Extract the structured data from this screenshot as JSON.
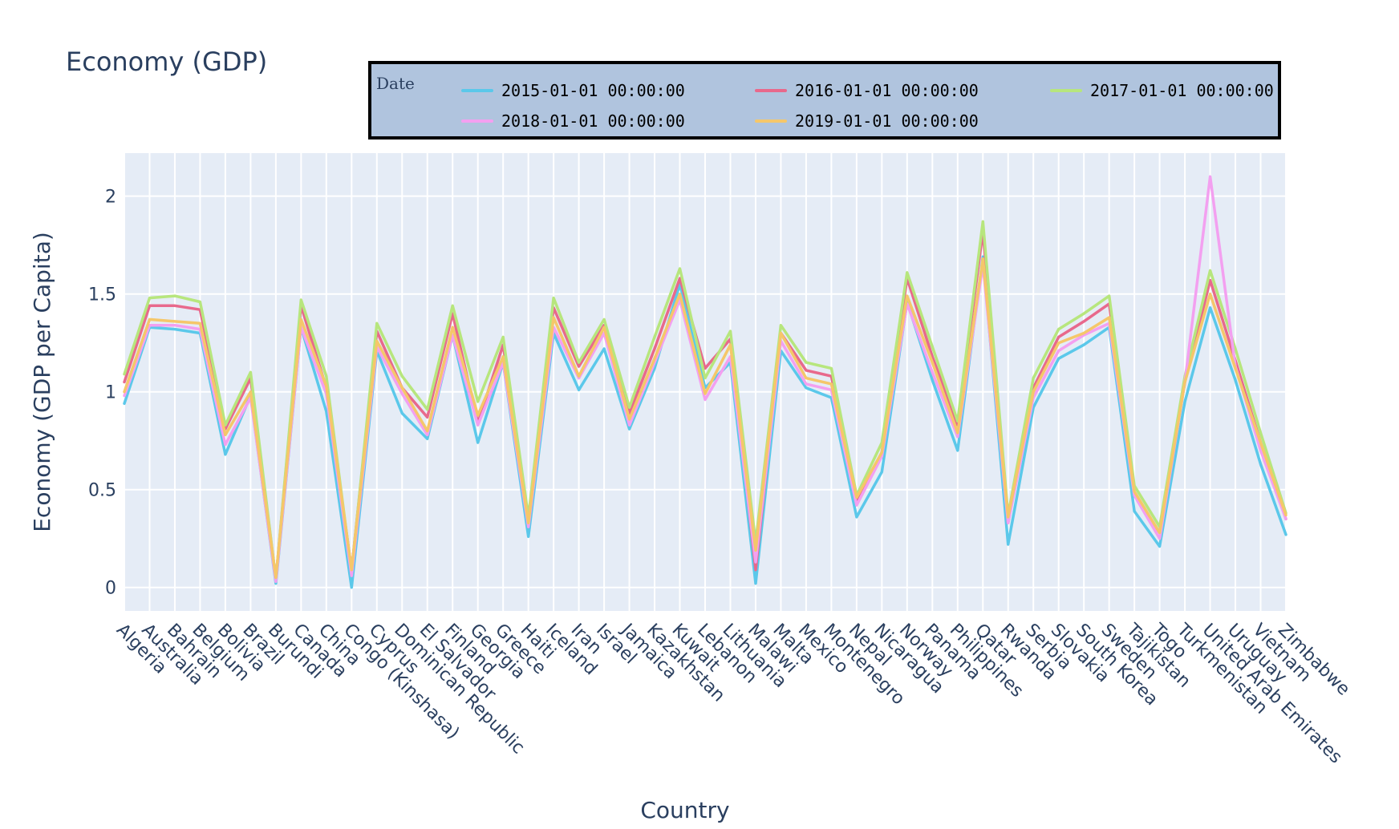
{
  "chart_data": {
    "type": "line",
    "title": "Economy (GDP)",
    "xlabel": "Country",
    "ylabel": "Economy (GDP per Capita)",
    "legend_title": "Date",
    "legend_placement": "top",
    "grid": true,
    "ylim": [
      -0.12,
      2.22
    ],
    "yticks": [
      0,
      0.5,
      1,
      1.5,
      2
    ],
    "ytick_labels": [
      "0",
      "0.5",
      "1",
      "1.5",
      "2"
    ],
    "plot_background": "#e5ecf6",
    "legend_background": "#b0c4de",
    "categories": [
      "Algeria",
      "Australia",
      "Bahrain",
      "Belgium",
      "Bolivia",
      "Brazil",
      "Burundi",
      "Canada",
      "China",
      "Congo (Kinshasa)",
      "Cyprus",
      "Dominican Republic",
      "El Salvador",
      "Finland",
      "Georgia",
      "Greece",
      "Haiti",
      "Iceland",
      "Iran",
      "Israel",
      "Jamaica",
      "Kazakhstan",
      "Kuwait",
      "Lebanon",
      "Lithuania",
      "Malawi",
      "Malta",
      "Mexico",
      "Montenegro",
      "Nepal",
      "Nicaragua",
      "Norway",
      "Panama",
      "Philippines",
      "Qatar",
      "Rwanda",
      "Serbia",
      "Slovakia",
      "South Korea",
      "Sweden",
      "Tajikistan",
      "Togo",
      "Turkmenistan",
      "United Arab Emirates",
      "Uruguay",
      "Vietnam",
      "Zimbabwe"
    ],
    "series": [
      {
        "name": "2015-01-01 00:00:00",
        "color": "#5bc8ea",
        "values": [
          0.94,
          1.33,
          1.32,
          1.3,
          0.68,
          0.98,
          0.02,
          1.33,
          0.9,
          0.0,
          1.21,
          0.89,
          0.76,
          1.29,
          0.74,
          1.15,
          0.26,
          1.3,
          1.01,
          1.22,
          0.81,
          1.12,
          1.55,
          1.02,
          1.15,
          0.02,
          1.21,
          1.02,
          0.97,
          0.36,
          0.59,
          1.46,
          1.06,
          0.7,
          1.69,
          0.22,
          0.92,
          1.17,
          1.24,
          1.33,
          0.39,
          0.21,
          0.95,
          1.43,
          1.06,
          0.63,
          0.27
        ]
      },
      {
        "name": "2016-01-01 00:00:00",
        "color": "#e8698c",
        "values": [
          1.05,
          1.44,
          1.44,
          1.42,
          0.81,
          1.07,
          0.04,
          1.44,
          1.02,
          0.09,
          1.31,
          1.02,
          0.87,
          1.4,
          0.84,
          1.24,
          0.34,
          1.43,
          1.13,
          1.34,
          0.89,
          1.22,
          1.58,
          1.12,
          1.27,
          0.09,
          1.3,
          1.11,
          1.08,
          0.44,
          0.69,
          1.58,
          1.18,
          0.83,
          1.82,
          0.33,
          1.02,
          1.28,
          1.36,
          1.45,
          0.48,
          0.28,
          1.05,
          1.57,
          1.16,
          0.74,
          0.35
        ]
      },
      {
        "name": "2017-01-01 00:00:00",
        "color": "#b7e67d",
        "values": [
          1.09,
          1.48,
          1.49,
          1.46,
          0.83,
          1.1,
          0.04,
          1.47,
          1.08,
          0.08,
          1.35,
          1.08,
          0.91,
          1.44,
          0.95,
          1.28,
          0.36,
          1.48,
          1.15,
          1.37,
          0.92,
          1.28,
          1.63,
          1.07,
          1.31,
          0.23,
          1.34,
          1.15,
          1.12,
          0.47,
          0.74,
          1.61,
          1.23,
          0.85,
          1.87,
          0.37,
          1.07,
          1.32,
          1.4,
          1.49,
          0.52,
          0.31,
          1.08,
          1.62,
          1.22,
          0.79,
          0.38
        ]
      },
      {
        "name": "2018-01-01 00:00:00",
        "color": "#f3a0f0",
        "values": [
          0.98,
          1.34,
          1.34,
          1.32,
          0.73,
          0.97,
          0.03,
          1.33,
          0.99,
          0.06,
          1.23,
          0.99,
          0.78,
          1.29,
          0.83,
          1.15,
          0.31,
          1.33,
          1.07,
          1.3,
          0.83,
          1.15,
          1.47,
          0.96,
          1.18,
          0.13,
          1.26,
          1.04,
          1.01,
          0.42,
          0.67,
          1.45,
          1.1,
          0.77,
          1.65,
          0.33,
          0.97,
          1.21,
          1.29,
          1.35,
          0.47,
          0.25,
          1.05,
          2.1,
          1.13,
          0.7,
          0.35
        ]
      },
      {
        "name": "2019-01-01 00:00:00",
        "color": "#f5c76a",
        "values": [
          1.0,
          1.37,
          1.36,
          1.35,
          0.78,
          1.0,
          0.05,
          1.37,
          1.03,
          0.09,
          1.26,
          1.02,
          0.8,
          1.33,
          0.88,
          1.18,
          0.33,
          1.38,
          1.08,
          1.33,
          0.86,
          1.17,
          1.5,
          0.99,
          1.24,
          0.19,
          1.3,
          1.07,
          1.04,
          0.46,
          0.69,
          1.49,
          1.15,
          0.79,
          1.68,
          0.36,
          1.0,
          1.25,
          1.3,
          1.38,
          0.49,
          0.28,
          1.05,
          1.5,
          1.12,
          0.74,
          0.37
        ]
      }
    ]
  }
}
